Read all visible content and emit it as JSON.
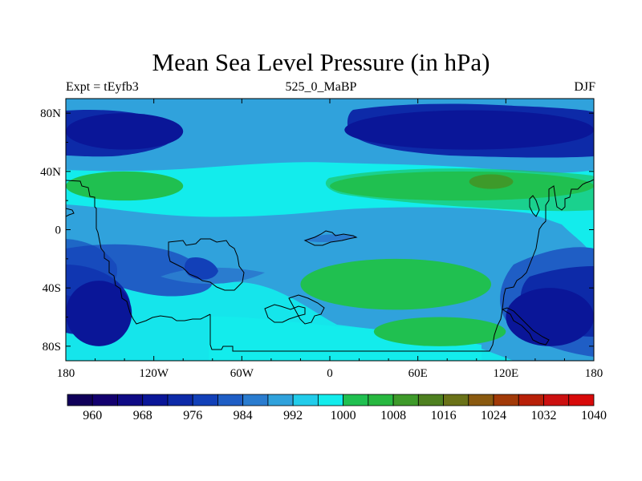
{
  "chart_data": {
    "type": "filled-contour-map",
    "title": "Mean Sea Level Pressure (in hPa)",
    "left_string": "Expt = tEyfb3",
    "center_string": "525_0_MaBP",
    "right_string": "DJF",
    "x_axis": {
      "range": [
        -180,
        180
      ],
      "tick_values": [
        -180,
        -120,
        -60,
        0,
        60,
        120,
        180
      ],
      "tick_labels": [
        "180",
        "120W",
        "60W",
        "0",
        "60E",
        "120E",
        "180"
      ]
    },
    "y_axis": {
      "range": [
        -90,
        90
      ],
      "tick_values": [
        80,
        40,
        0,
        -40,
        -80
      ],
      "tick_labels": [
        "80N",
        "40N",
        "0",
        "40S",
        "80S"
      ]
    },
    "colorbar": {
      "colors": [
        "#10005a",
        "#13006f",
        "#0f0a85",
        "#0a1698",
        "#0d2aa8",
        "#1240b8",
        "#1f5ec5",
        "#2a7ccf",
        "#30a2dc",
        "#22ccea",
        "#13ecec",
        "#20c050",
        "#28b840",
        "#3e9a2a",
        "#4e8020",
        "#6a7218",
        "#8a5a10",
        "#a23a08",
        "#b82008",
        "#cc1010",
        "#d80a0a"
      ],
      "labels": [
        "960",
        "968",
        "976",
        "984",
        "992",
        "1000",
        "1008",
        "1016",
        "1024",
        "1032",
        "1040"
      ],
      "label_positions": [
        1,
        3,
        5,
        7,
        9,
        11,
        13,
        15,
        17,
        19,
        21
      ]
    },
    "regions": [
      {
        "level": "984-988",
        "color": "#1f5ec5",
        "lon": -180,
        "lat": 90,
        "lon2": 180,
        "lat2": 55
      },
      {
        "level": "<972",
        "color": "#0a1698",
        "lon": -180,
        "lat": 80,
        "lon2": -100,
        "lat2": 55
      },
      {
        "level": "<972",
        "color": "#0a1698",
        "lon": 10,
        "lat": 82,
        "lon2": 180,
        "lat2": 55
      },
      {
        "level": "<972",
        "color": "#0a1698",
        "lon": -180,
        "lat": -35,
        "lon2": -135,
        "lat2": -80
      },
      {
        "level": "<972",
        "color": "#0a1698",
        "lon": 120,
        "lat": -40,
        "lon2": 180,
        "lat2": -80
      },
      {
        "level": "1004-1008",
        "color": "#20c050",
        "lon": -180,
        "lat": 40,
        "lon2": -100,
        "lat2": 20
      },
      {
        "level": "1004-1008",
        "color": "#20c050",
        "lon": 0,
        "lat": 40,
        "lon2": 180,
        "lat2": 20
      },
      {
        "level": "1004-1008",
        "color": "#20c050",
        "lon": -20,
        "lat": -20,
        "lon2": 110,
        "lat2": -55
      },
      {
        "level": "1004-1008",
        "color": "#20c050",
        "lon": 30,
        "lat": -60,
        "lon2": 120,
        "lat2": -80
      },
      {
        "level": "1012-1016",
        "color": "#3e9a2a",
        "lon": 95,
        "lat": 38,
        "lon2": 125,
        "lat2": 28
      }
    ]
  }
}
